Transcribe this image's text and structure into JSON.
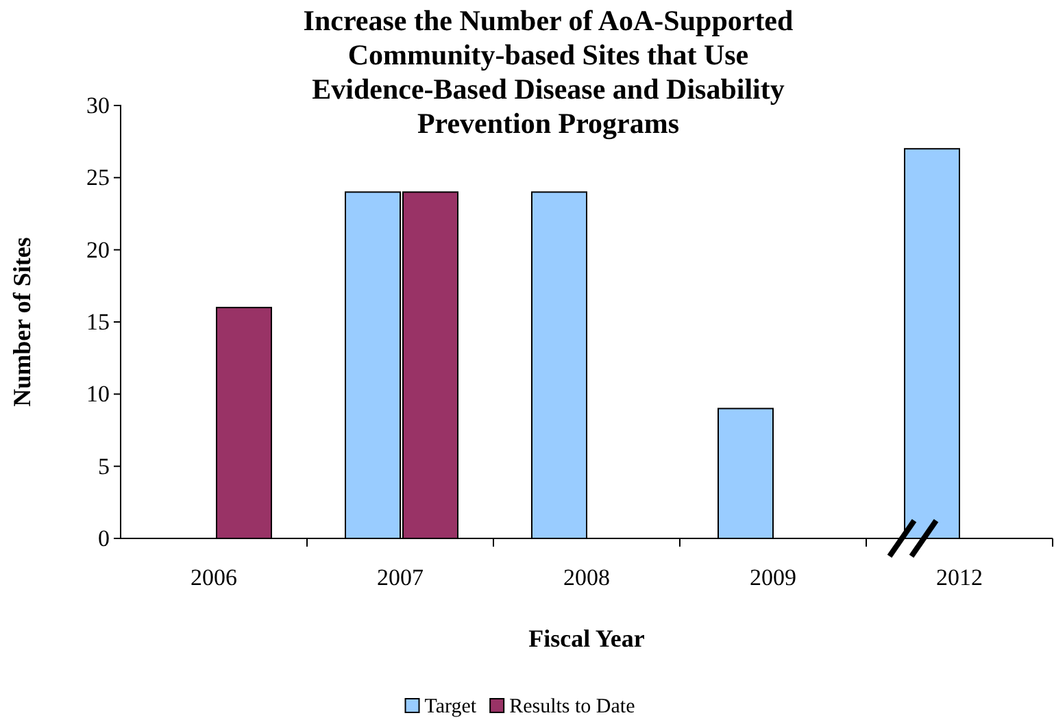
{
  "chart_data": {
    "type": "bar",
    "title": "Increase the Number of AoA-Supported Community-based Sites that Use Evidence-Based Disease and Disability Prevention Programs",
    "xlabel": "Fiscal Year",
    "ylabel": "Number of Sites",
    "categories": [
      "2006",
      "2007",
      "2008",
      "2009",
      "2012"
    ],
    "series": [
      {
        "name": "Target",
        "color": "#99ccff",
        "values": [
          null,
          24,
          24,
          9,
          27
        ]
      },
      {
        "name": "Results to Date",
        "color": "#993366",
        "values": [
          16,
          24,
          null,
          null,
          null
        ]
      }
    ],
    "ylim": [
      0,
      30
    ],
    "yticks": [
      0,
      5,
      10,
      15,
      20,
      25,
      30
    ],
    "grid": false,
    "legend": "bottom"
  }
}
